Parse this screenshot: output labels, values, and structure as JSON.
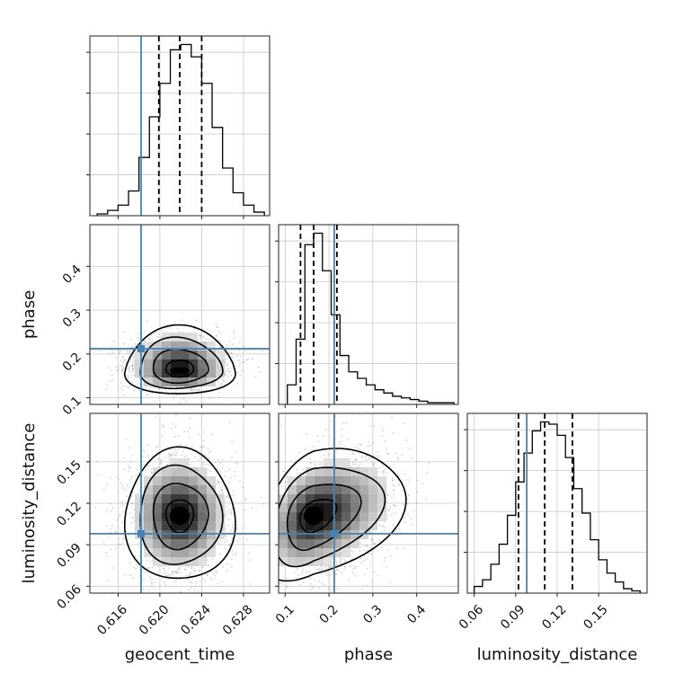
{
  "chart_data": {
    "type": "corner",
    "parameters": [
      {
        "name": "geocent_time",
        "label": "geocent_time",
        "range": [
          0.6133,
          0.6305
        ],
        "ticks": [
          0.616,
          0.62,
          0.624,
          0.628
        ],
        "tick_labels": [
          "0.616",
          "0.620",
          "0.624",
          "0.628"
        ]
      },
      {
        "name": "phase",
        "label": "phase",
        "range": [
          0.085,
          0.495
        ],
        "ticks": [
          0.1,
          0.2,
          0.3,
          0.4
        ],
        "tick_labels": [
          "0.1",
          "0.2",
          "0.3",
          "0.4"
        ]
      },
      {
        "name": "luminosity_distance",
        "label": "luminosity_distance",
        "range": [
          0.055,
          0.185
        ],
        "ticks": [
          0.06,
          0.09,
          0.12,
          0.15
        ],
        "tick_labels": [
          "0.06",
          "0.09",
          "0.12",
          "0.15"
        ]
      }
    ],
    "truths": {
      "geocent_time": 0.6182,
      "phase": 0.212,
      "luminosity_distance": 0.098
    },
    "truth_color": "#4682b4",
    "quantiles": {
      "geocent_time": [
        0.6199,
        0.6219,
        0.624
      ],
      "phase": [
        0.135,
        0.165,
        0.218
      ],
      "luminosity_distance": [
        0.092,
        0.111,
        0.131
      ]
    },
    "histograms": {
      "geocent_time": {
        "edges": [
          0.614,
          0.615,
          0.616,
          0.617,
          0.618,
          0.619,
          0.62,
          0.621,
          0.622,
          0.623,
          0.624,
          0.625,
          0.626,
          0.627,
          0.628,
          0.629,
          0.63
        ],
        "counts": [
          1,
          3,
          6,
          14,
          33,
          56,
          75,
          94,
          97,
          90,
          75,
          50,
          27,
          13,
          6,
          2
        ]
      },
      "phase": {
        "edges": [
          0.105,
          0.125,
          0.145,
          0.165,
          0.185,
          0.205,
          0.225,
          0.245,
          0.265,
          0.285,
          0.305,
          0.325,
          0.345,
          0.365,
          0.385,
          0.405,
          0.425,
          0.445,
          0.465,
          0.485
        ],
        "counts": [
          12,
          40,
          98,
          105,
          82,
          55,
          30,
          20,
          16,
          12,
          9,
          7,
          5,
          4,
          3,
          2,
          1,
          1,
          1
        ]
      },
      "luminosity_distance": {
        "edges": [
          0.06,
          0.066,
          0.072,
          0.078,
          0.084,
          0.09,
          0.096,
          0.102,
          0.108,
          0.114,
          0.12,
          0.126,
          0.132,
          0.138,
          0.144,
          0.15,
          0.156,
          0.162,
          0.168,
          0.174,
          0.18
        ],
        "counts": [
          3,
          6,
          13,
          22,
          35,
          50,
          63,
          73,
          77,
          76,
          71,
          61,
          47,
          36,
          24,
          15,
          9,
          5,
          2,
          1
        ]
      }
    },
    "contour_levels_sigma": [
      0.5,
      1,
      1.5,
      2
    ],
    "joint": {
      "phase_vs_geocent_time": {
        "x_mean": 0.6219,
        "x_sd": 0.0021,
        "y_mean": 0.162,
        "y_sd": 0.022,
        "y_tail": 0.06
      },
      "luminosity_distance_vs_geocent_time": {
        "x_mean": 0.6219,
        "x_sd": 0.0021,
        "y_mean": 0.111,
        "y_sd": 0.019
      },
      "luminosity_distance_vs_phase": {
        "x_mean": 0.165,
        "x_sd": 0.05,
        "y_mean": 0.111,
        "y_sd": 0.019
      }
    },
    "grid": true
  }
}
